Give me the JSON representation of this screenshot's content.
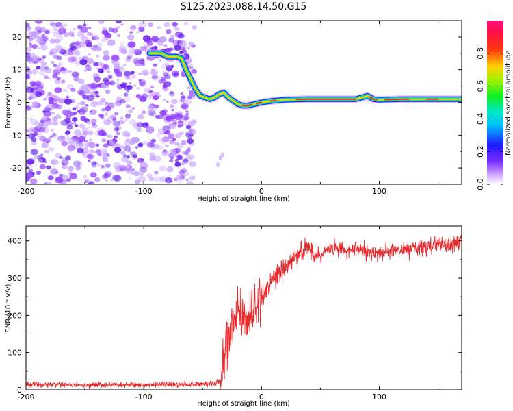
{
  "title": "S125.2023.088.14.50.G15",
  "colors": {
    "axis": "#000000",
    "snr_line": "#e8282a",
    "speckle": "#8a33ff",
    "speckle_dark": "#5a10e8",
    "track_edge": "#1a1adf"
  },
  "chart_data": [
    {
      "type": "heatmap",
      "name": "spectrogram",
      "xlabel": "Height of straight line (km)",
      "ylabel": "Frequency (Hz)",
      "xlim": [
        -200,
        170
      ],
      "ylim": [
        -25,
        25
      ],
      "xticks": [
        -200,
        -100,
        0,
        100
      ],
      "yticks": [
        20,
        10,
        0,
        -10,
        -20
      ],
      "colorbar": {
        "label": "Normalized spectral amplitude",
        "ticks": [
          "0.0",
          "0.2",
          "0.4",
          "0.6",
          "0.8"
        ],
        "range": [
          0,
          1
        ],
        "colormap": "rainbow (white→violet→blue→cyan→green→yellow→red→magenta)"
      },
      "noise_region_x": [
        -200,
        -57
      ],
      "ridge": {
        "x": [
          -95,
          -85,
          -80,
          -72,
          -68,
          -64,
          -60,
          -56,
          -52,
          -48,
          -44,
          -40,
          -36,
          -32,
          -28,
          -24,
          -20,
          -16,
          -12,
          -6,
          0,
          10,
          20,
          40,
          60,
          80,
          85,
          90,
          95,
          100,
          120,
          140,
          170
        ],
        "y": [
          15,
          15,
          14,
          14,
          13.5,
          10,
          7,
          4,
          2,
          1.5,
          1,
          1.5,
          2.5,
          3,
          1.5,
          0.5,
          -0.5,
          -1,
          -1,
          -0.5,
          0,
          0.5,
          0.8,
          1,
          1,
          1,
          1.5,
          2,
          1,
          0.8,
          1,
          1,
          1
        ]
      }
    },
    {
      "type": "line",
      "name": "snr",
      "xlabel": "Height of straight line (km)",
      "ylabel": "SNR (10 * v/v)",
      "xlim": [
        -200,
        170
      ],
      "ylim": [
        0,
        440
      ],
      "xticks": [
        -200,
        -100,
        0,
        100
      ],
      "yticks": [
        0,
        100,
        200,
        300,
        400
      ],
      "series": [
        {
          "x": [
            -200,
            -150,
            -100,
            -60,
            -40,
            -35,
            -32,
            -28,
            -25,
            -22,
            -20,
            -18,
            -15,
            -12,
            -8,
            -5,
            0,
            5,
            10,
            20,
            30,
            35,
            40,
            45,
            50,
            55,
            60,
            80,
            100,
            120,
            140,
            160,
            170
          ],
          "values": [
            14,
            13,
            13,
            15,
            17,
            25,
            85,
            130,
            160,
            190,
            230,
            200,
            180,
            200,
            215,
            230,
            250,
            270,
            300,
            330,
            360,
            370,
            385,
            355,
            365,
            375,
            380,
            375,
            368,
            375,
            385,
            390,
            395
          ]
        }
      ]
    }
  ]
}
